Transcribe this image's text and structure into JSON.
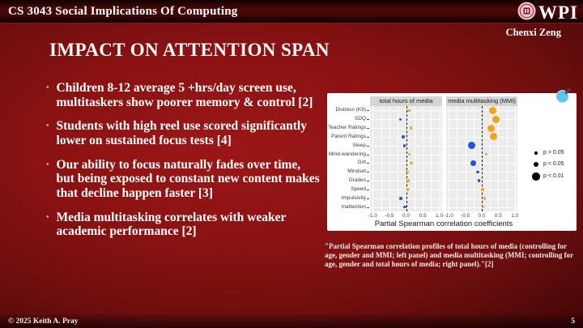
{
  "header": {
    "course_title": "CS 3043 Social Implications Of Computing",
    "logo_text": "WPI",
    "author": "Chenxi Zeng"
  },
  "slide": {
    "title": "IMPACT ON ATTENTION SPAN",
    "bullet_char": "•",
    "bullets": [
      "Children 8-12 average 5 +hrs/day screen use, multitaskers show poorer memory & control [2]",
      "Students with high reel use scored significantly lower on sustained focus tests [4]",
      "Our ability to focus naturally fades over time, but being exposed to constant new content makes that decline happen faster [3]",
      "Media multitasking correlates with weaker academic performance [2]"
    ]
  },
  "caption": {
    "text": "\"Partial Spearman correlation profiles of total hours of media (controlling for age, gender and MMI; left panel) and media multitasking (MMI; controlling for age, gender and total hours of media; right panel).\"[2]"
  },
  "footer": {
    "copyright": "© 2025 Keith A. Pray",
    "page_number": "5"
  },
  "chart_data": {
    "type": "scatter",
    "xlabel": "Partial Spearman correlation coefficients",
    "xlim": [
      -1.08,
      1.08
    ],
    "xticks": [
      -1.0,
      -0.5,
      0.0,
      0.5,
      1.0
    ],
    "xtick_labels": [
      "-1.0",
      "-0.5",
      "0.0",
      "0.5",
      "1.0"
    ],
    "minor_grid_step": 0.25,
    "reference_line_x": 0,
    "grid": true,
    "categories": [
      "Distress (K6)",
      "SDQ",
      "Teacher Ratings",
      "Parent Ratings",
      "Sleep",
      "Mind-wandering",
      "Grit",
      "Mindset",
      "Grades",
      "Speed",
      "Impulsivity",
      "Inattention"
    ],
    "series": [
      {
        "name": "total hours of media",
        "values": [
          0.08,
          -0.17,
          0.15,
          -0.09,
          -0.05,
          0.1,
          0.16,
          0.04,
          0.06,
          0.05,
          -0.16,
          -0.04
        ],
        "significance": [
          "p > 0.05",
          "p > 0.05",
          "p > 0.05",
          "p > 0.05",
          "p > 0.05",
          "p > 0.05",
          "p > 0.05",
          "p > 0.05",
          "p > 0.05",
          "p > 0.05",
          "p > 0.05",
          "p > 0.05"
        ]
      },
      {
        "name": "media multitasking (MMI)",
        "values": [
          0.32,
          0.42,
          0.28,
          0.35,
          -0.3,
          0.14,
          -0.26,
          -0.12,
          -0.08,
          0.03,
          0.08,
          0.04
        ],
        "significance": [
          "p < 0.01",
          "p < 0.01",
          "p < 0.01",
          "p < 0.01",
          "p < 0.01",
          "p > 0.05",
          "p < 0.05",
          "p > 0.05",
          "p > 0.05",
          "p > 0.05",
          "p > 0.05",
          "p > 0.05"
        ]
      }
    ],
    "legend": [
      "p > 0.05",
      "p < 0.05",
      "p < 0.01"
    ],
    "legend_position": "right",
    "point_colors": {
      "positive": "#F2A41F",
      "negative": "#2453D8"
    },
    "panel_strip_bg": "#d5d5d5",
    "plot_bg": "#ebebeb"
  }
}
